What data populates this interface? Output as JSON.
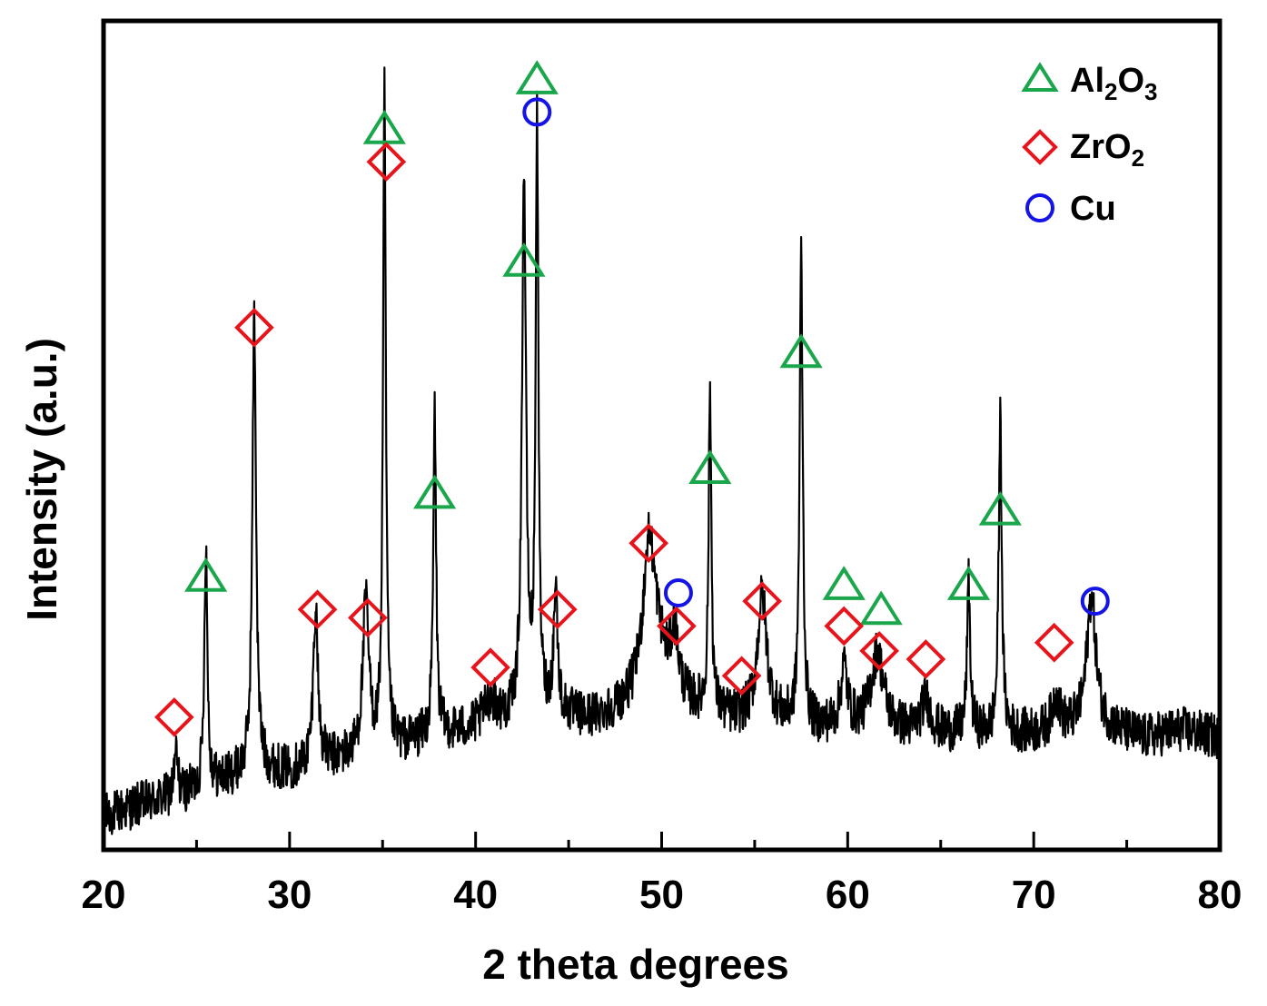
{
  "chart_data": {
    "type": "line",
    "title": "",
    "xlabel": "2 theta degrees",
    "ylabel": "Intensity (a.u.)",
    "xlim": [
      20,
      80
    ],
    "ylim": [
      0,
      100
    ],
    "x_ticks": [
      20,
      30,
      40,
      50,
      60,
      70,
      80
    ],
    "y_ticks": [],
    "grid": false,
    "legend_position": "top-right",
    "colors": {
      "trace": "#000000",
      "Al2O3": "#1aa64a",
      "ZrO2": "#e8141c",
      "Cu": "#1414e6"
    },
    "legend": [
      {
        "series": "Al2O3",
        "marker": "triangle",
        "label_main": "Al",
        "sub1": "2",
        "label_mid": "O",
        "sub2": "3"
      },
      {
        "series": "ZrO2",
        "marker": "diamond",
        "label_main": "ZrO",
        "sub1": "2",
        "label_mid": "",
        "sub2": ""
      },
      {
        "series": "Cu",
        "marker": "circle",
        "label_main": "Cu",
        "sub1": "",
        "label_mid": "",
        "sub2": ""
      }
    ],
    "baseline": [
      [
        20,
        4
      ],
      [
        22,
        5.5
      ],
      [
        24,
        6.5
      ],
      [
        26,
        8
      ],
      [
        28,
        9.5
      ],
      [
        30,
        9.5
      ],
      [
        32,
        10.5
      ],
      [
        34,
        11.5
      ],
      [
        36,
        12.5
      ],
      [
        38,
        14
      ],
      [
        40,
        14.5
      ],
      [
        42,
        15.5
      ],
      [
        44,
        16.5
      ],
      [
        46,
        15.5
      ],
      [
        48,
        16.5
      ],
      [
        50,
        17.5
      ],
      [
        52,
        16.5
      ],
      [
        54,
        15.5
      ],
      [
        56,
        15.5
      ],
      [
        58,
        14.5
      ],
      [
        60,
        15
      ],
      [
        62,
        14.5
      ],
      [
        64,
        14
      ],
      [
        66,
        14
      ],
      [
        68,
        14
      ],
      [
        70,
        14
      ],
      [
        72,
        14.5
      ],
      [
        74,
        14.5
      ],
      [
        76,
        13.5
      ],
      [
        78,
        14.5
      ],
      [
        80,
        13.5
      ]
    ],
    "peaks": [
      {
        "x": 23.9,
        "h": 5,
        "w": 0.12
      },
      {
        "x": 25.5,
        "h": 29,
        "w": 0.1
      },
      {
        "x": 28.1,
        "h": 55,
        "w": 0.12
      },
      {
        "x": 31.4,
        "h": 19,
        "w": 0.15
      },
      {
        "x": 34.1,
        "h": 18,
        "w": 0.2
      },
      {
        "x": 35.1,
        "h": 79,
        "w": 0.09
      },
      {
        "x": 37.8,
        "h": 39,
        "w": 0.09
      },
      {
        "x": 40.8,
        "h": 3,
        "w": 0.4
      },
      {
        "x": 42.6,
        "h": 65,
        "w": 0.13
      },
      {
        "x": 43.3,
        "h": 70,
        "w": 0.09
      },
      {
        "x": 44.3,
        "h": 15,
        "w": 0.12
      },
      {
        "x": 49.3,
        "h": 14,
        "w": 0.35
      },
      {
        "x": 49.6,
        "h": 8,
        "w": 0.7
      },
      {
        "x": 50.7,
        "h": 7,
        "w": 0.25
      },
      {
        "x": 52.6,
        "h": 38,
        "w": 0.09
      },
      {
        "x": 55.4,
        "h": 15,
        "w": 0.3
      },
      {
        "x": 57.5,
        "h": 57,
        "w": 0.1
      },
      {
        "x": 59.8,
        "h": 7,
        "w": 0.2
      },
      {
        "x": 61.6,
        "h": 9,
        "w": 0.4
      },
      {
        "x": 64.2,
        "h": 4,
        "w": 0.3
      },
      {
        "x": 66.5,
        "h": 18,
        "w": 0.1
      },
      {
        "x": 68.2,
        "h": 38,
        "w": 0.1
      },
      {
        "x": 71.2,
        "h": 4,
        "w": 0.25
      },
      {
        "x": 73.1,
        "h": 16,
        "w": 0.3
      }
    ],
    "markers": {
      "Al2O3": [
        [
          25.5,
          33
        ],
        [
          35.1,
          87
        ],
        [
          37.8,
          43
        ],
        [
          42.6,
          71
        ],
        [
          43.3,
          93
        ],
        [
          52.6,
          46
        ],
        [
          57.5,
          60
        ],
        [
          59.8,
          32
        ],
        [
          61.8,
          29
        ],
        [
          66.5,
          32
        ],
        [
          68.2,
          41
        ]
      ],
      "ZrO2": [
        [
          23.8,
          16
        ],
        [
          28.1,
          63
        ],
        [
          31.5,
          29
        ],
        [
          34.2,
          28
        ],
        [
          35.2,
          83
        ],
        [
          40.8,
          22
        ],
        [
          44.4,
          29
        ],
        [
          49.3,
          37
        ],
        [
          50.8,
          27
        ],
        [
          54.3,
          21
        ],
        [
          55.4,
          30
        ],
        [
          59.8,
          27
        ],
        [
          61.7,
          24
        ],
        [
          64.2,
          23
        ],
        [
          71.1,
          25
        ]
      ],
      "Cu": [
        [
          43.3,
          89
        ],
        [
          50.9,
          31
        ],
        [
          73.3,
          30
        ]
      ]
    }
  }
}
